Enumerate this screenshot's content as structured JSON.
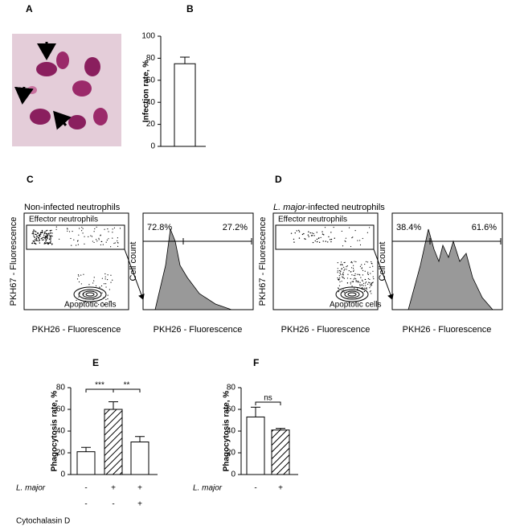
{
  "panels": {
    "a": {
      "label": "A"
    },
    "b": {
      "label": "B"
    },
    "c": {
      "label": "C"
    },
    "d": {
      "label": "D"
    },
    "e": {
      "label": "E"
    },
    "f": {
      "label": "F"
    }
  },
  "chart_data": [
    {
      "type": "bar",
      "y_label": "Infection rate, %",
      "categories": [
        null
      ],
      "values": [
        75
      ],
      "errors": [
        6
      ],
      "color": "#ffffff",
      "ylim": [
        0,
        100
      ],
      "yticks": [
        0,
        20,
        40,
        60,
        80,
        100
      ]
    },
    {
      "type": "bar",
      "y_label": "Phagocytosis rate, %",
      "categories": [
        null,
        null,
        null
      ],
      "values": [
        21,
        60,
        30
      ],
      "errors": [
        4,
        7,
        5
      ],
      "hatched": [
        false,
        true,
        false
      ],
      "color": "#ffffff",
      "ylim": [
        0,
        80
      ],
      "yticks": [
        0,
        20,
        40,
        60,
        80
      ],
      "annotations": [
        "***",
        "**"
      ],
      "x_rows": [
        {
          "name": "L. major",
          "values": [
            "-",
            "+",
            "+"
          ]
        },
        {
          "name": "Cytochalasin D",
          "values": [
            "-",
            "-",
            "+"
          ]
        }
      ]
    },
    {
      "type": "bar",
      "y_label": "Phagocytosis rate, %",
      "categories": [
        null,
        null
      ],
      "values": [
        53,
        41
      ],
      "errors": [
        9,
        1.5
      ],
      "hatched": [
        false,
        true
      ],
      "color": "#ffffff",
      "ylim": [
        0,
        80
      ],
      "yticks": [
        0,
        20,
        40,
        60,
        80
      ],
      "annotations": [
        "ns"
      ],
      "x_rows": [
        {
          "name": "L. major",
          "values": [
            "-",
            "+"
          ]
        }
      ]
    }
  ],
  "flow": [
    {
      "title": "Non-infected neutrophils",
      "gate": "Effector neutrophils",
      "cluster": "Apoptotic cells",
      "y_axis": "PKH67 - Fluorescence",
      "x_axis": "PKH26 - Fluorescence",
      "hist_y": "Cell count",
      "hist_x": "PKH26 - Fluorescence",
      "left_pct": "72.8%",
      "right_pct": "27.2%"
    },
    {
      "title_italic": "L. major",
      "title": "-infected neutrophils",
      "gate": "Effector neutrophils",
      "cluster": "Apoptotic cells",
      "y_axis": "PKH67 - Fluorescence",
      "x_axis": "PKH26 - Fluorescence",
      "hist_y": "Cell count",
      "hist_x": "PKH26 - Fluorescence",
      "left_pct": "38.4%",
      "right_pct": "61.6%"
    }
  ]
}
